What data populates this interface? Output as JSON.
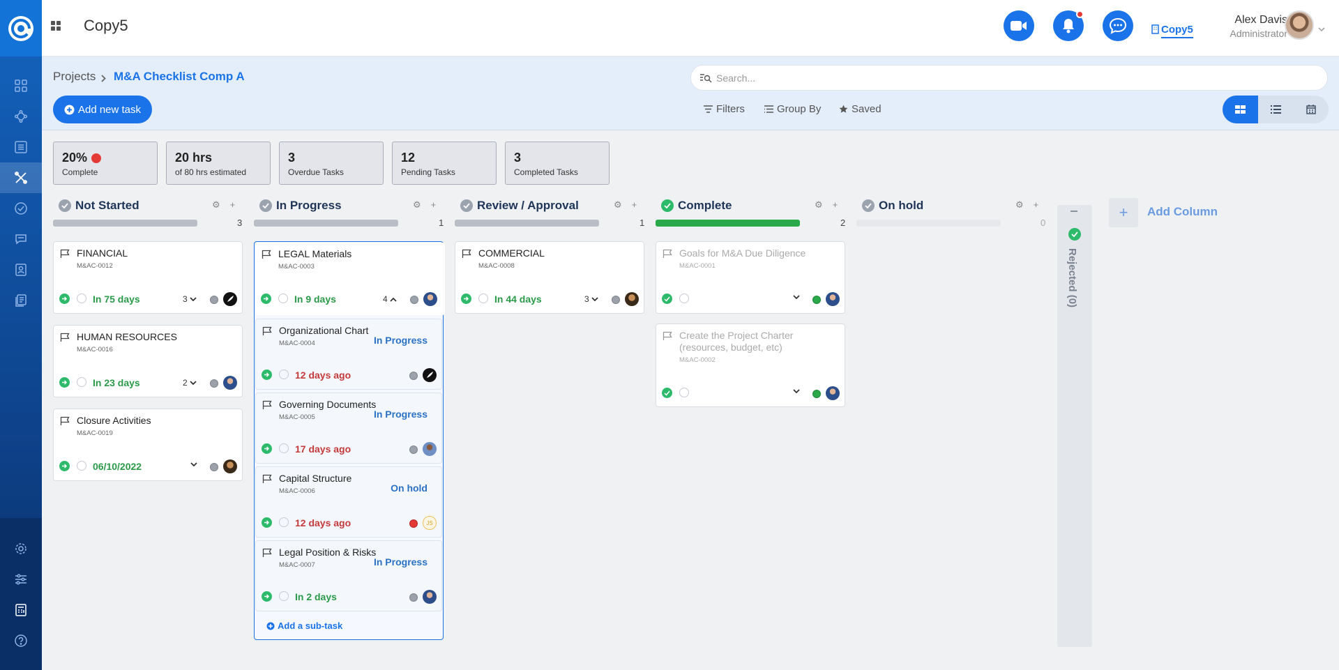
{
  "app": {
    "title": "Copy5"
  },
  "header": {
    "org_link": "Copy5",
    "user_name": "Alex Davis",
    "user_role": "Administrator"
  },
  "breadcrumb": {
    "parent": "Projects",
    "current": "M&A Checklist Comp A"
  },
  "search": {
    "placeholder": "Search..."
  },
  "toolbar": {
    "add_task": "Add new task",
    "filters": "Filters",
    "group_by": "Group By",
    "saved": "Saved"
  },
  "stats": [
    {
      "value": "20%",
      "label": "Complete"
    },
    {
      "value": "20 hrs",
      "label": "of 80 hrs estimated"
    },
    {
      "value": "3",
      "label": "Overdue Tasks"
    },
    {
      "value": "12",
      "label": "Pending Tasks"
    },
    {
      "value": "3",
      "label": "Completed Tasks"
    }
  ],
  "columns": [
    {
      "title": "Not Started",
      "count": "3"
    },
    {
      "title": "In Progress",
      "count": "1"
    },
    {
      "title": "Review / Approval",
      "count": "1"
    },
    {
      "title": "Complete",
      "count": "2"
    },
    {
      "title": "On hold",
      "count": "0"
    }
  ],
  "cards": {
    "financial": {
      "title": "FINANCIAL",
      "code": "M&AC-0012",
      "due": "In 75 days",
      "subtasks": "3"
    },
    "hr": {
      "title": "HUMAN RESOURCES",
      "code": "M&AC-0016",
      "due": "In 23 days",
      "subtasks": "2"
    },
    "closure": {
      "title": "Closure Activities",
      "code": "M&AC-0019",
      "due": "06/10/2022"
    },
    "legal": {
      "title": "LEGAL Materials",
      "code": "M&AC-0003",
      "due": "In 9 days",
      "subtasks": "4"
    },
    "org_chart": {
      "title": "Organizational Chart",
      "code": "M&AC-0004",
      "status": "In Progress",
      "due": "12 days ago"
    },
    "governing": {
      "title": "Governing Documents",
      "code": "M&AC-0005",
      "status": "In Progress",
      "due": "17 days ago"
    },
    "capital": {
      "title": "Capital Structure",
      "code": "M&AC-0006",
      "status": "On hold",
      "due": "12 days ago",
      "avatar": "JS"
    },
    "legal_pos": {
      "title": "Legal Position & Risks",
      "code": "M&AC-0007",
      "status": "In Progress",
      "due": "In 2 days"
    },
    "commercial": {
      "title": "COMMERCIAL",
      "code": "M&AC-0008",
      "due": "In 44 days",
      "subtasks": "3"
    },
    "goals": {
      "title": "Goals for M&A Due Diligence",
      "code": "M&AC-0001"
    },
    "charter": {
      "title": "Create the Project Charter (resources, budget, etc)",
      "code": "M&AC-0002"
    }
  },
  "add_subtask": "Add a sub-task",
  "rejected": {
    "label": "Rejected (0)"
  },
  "add_column": {
    "plus": "+",
    "label": "Add Column"
  }
}
